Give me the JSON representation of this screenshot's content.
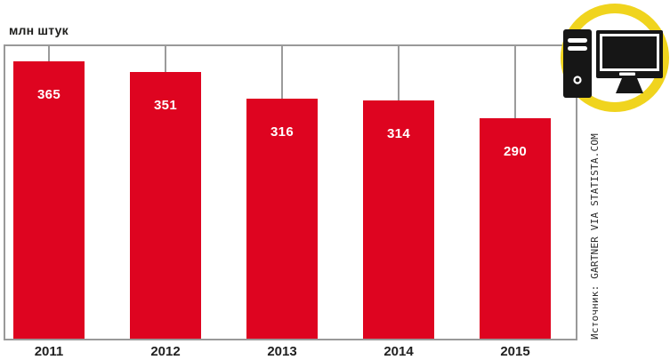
{
  "chart": {
    "unit_label": "млн штук"
  },
  "source": {
    "label": "Источник: GARTNER VIA STATISTA.COM"
  },
  "icon": {
    "name": "desktop-computer",
    "ring_color": "#F0D41E",
    "glyph_color": "#161616"
  },
  "colors": {
    "bar": "#DE0420",
    "bar_value_text": "#FFFFFF",
    "axis_line": "#999999",
    "connector_line": "#9B9B9B",
    "label_text": "#1D1D1B"
  },
  "chart_data": {
    "type": "bar",
    "title": "",
    "categories": [
      "2011",
      "2012",
      "2013",
      "2014",
      "2015"
    ],
    "values": [
      365,
      351,
      316,
      314,
      290
    ],
    "xlabel": "",
    "ylabel": "млн штук",
    "ylim": [
      0,
      385
    ],
    "grid": false,
    "legend": false,
    "bar_color": "#DE0420",
    "value_labels_inside_bars": true,
    "connectors_from_top_axis": true
  }
}
